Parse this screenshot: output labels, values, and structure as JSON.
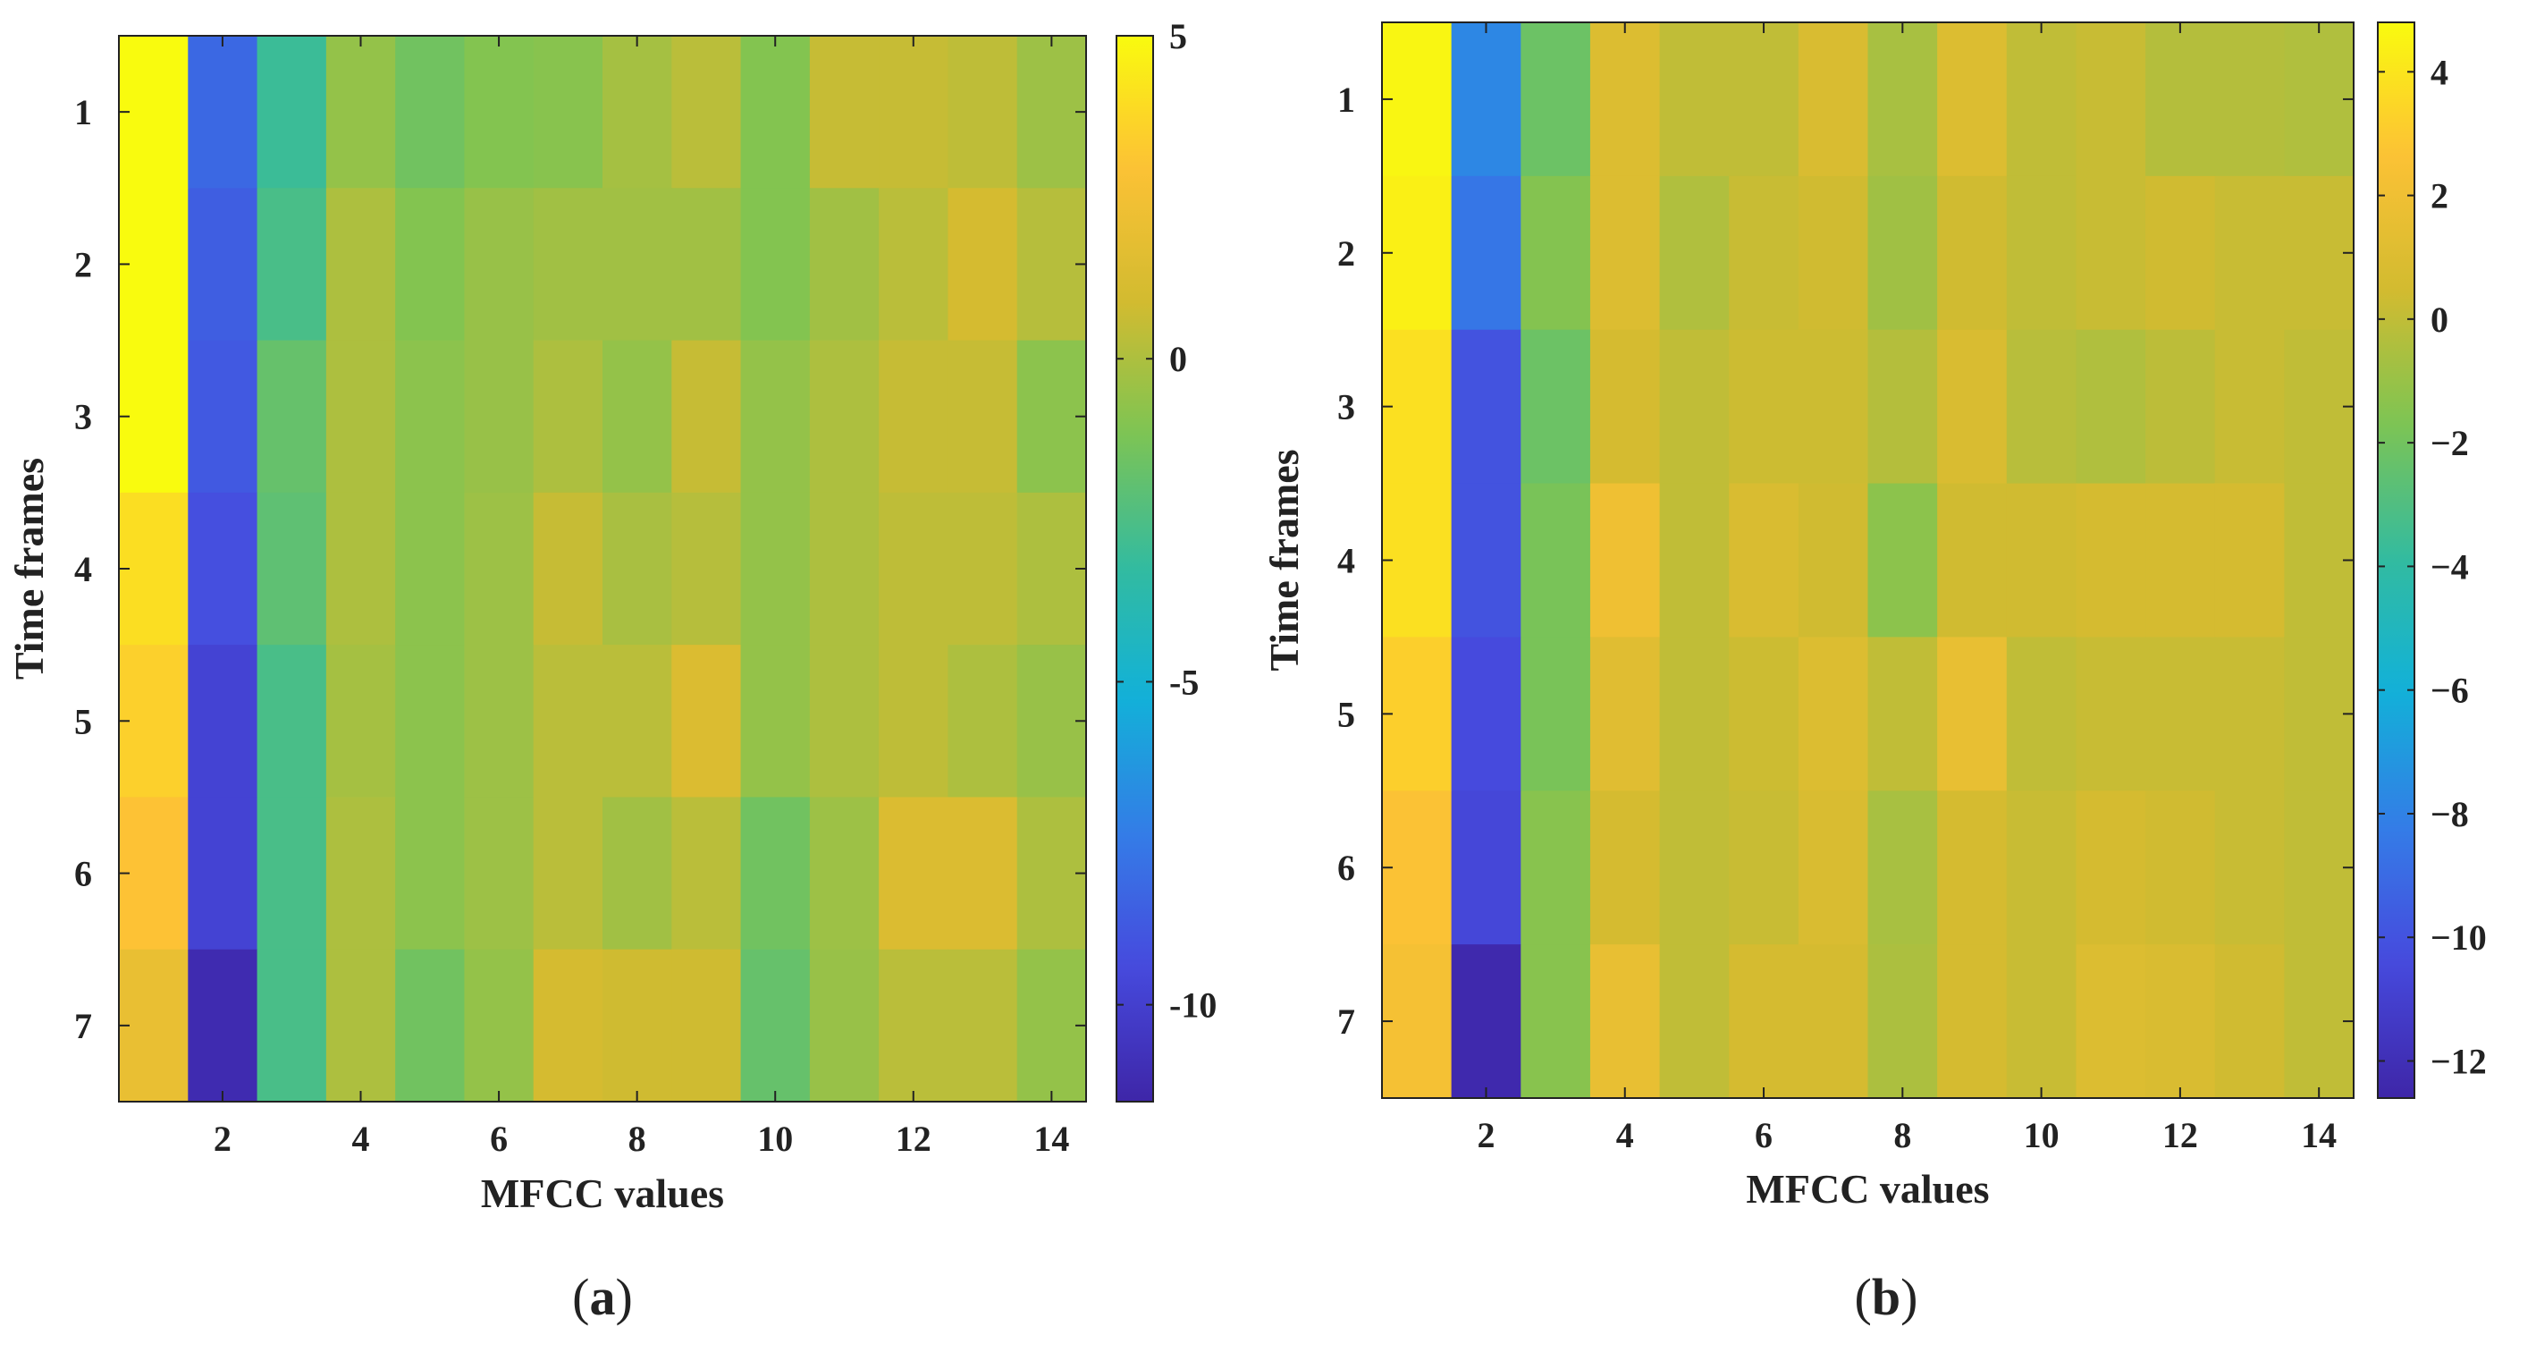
{
  "chart_data": [
    {
      "id": "a",
      "type": "heatmap",
      "title": "",
      "xlabel": "MFCC values",
      "ylabel": "Time frames",
      "caption": "a",
      "x_range": [
        1,
        14
      ],
      "y_range": [
        1,
        7
      ],
      "xticks": [
        2,
        4,
        6,
        8,
        10,
        12,
        14
      ],
      "yticks": [
        1,
        2,
        3,
        4,
        5,
        6,
        7
      ],
      "colorbar": {
        "min": -11.5,
        "max": 5,
        "ticks": [
          5,
          0,
          -5,
          -10
        ],
        "tick_labels": [
          "5",
          "0",
          "-5",
          "-10"
        ]
      },
      "rows": [
        "1",
        "2",
        "3",
        "4",
        "5",
        "6",
        "7"
      ],
      "values": [
        [
          5.0,
          -8.2,
          -3.0,
          -0.6,
          -1.5,
          -1.0,
          -0.9,
          -0.2,
          0.3,
          -1.0,
          0.6,
          0.6,
          0.4,
          -0.4
        ],
        [
          5.0,
          -8.6,
          -2.6,
          0.0,
          -1.0,
          -0.5,
          -0.3,
          -0.3,
          -0.3,
          -1.0,
          -0.3,
          0.3,
          1.0,
          0.2
        ],
        [
          5.0,
          -8.8,
          -1.8,
          0.0,
          -0.8,
          -0.5,
          0.0,
          -0.6,
          0.6,
          -0.6,
          0.0,
          0.6,
          0.6,
          -0.8
        ],
        [
          4.0,
          -9.2,
          -2.0,
          0.0,
          -0.8,
          -0.4,
          0.6,
          -0.1,
          0.2,
          -0.6,
          0.0,
          0.4,
          0.4,
          0.0
        ],
        [
          3.5,
          -9.8,
          -2.6,
          -0.2,
          -0.8,
          -0.4,
          0.3,
          0.3,
          1.3,
          -0.6,
          0.0,
          0.4,
          0.0,
          -0.5
        ],
        [
          3.0,
          -9.8,
          -2.6,
          0.0,
          -0.8,
          -0.4,
          0.3,
          -0.3,
          0.3,
          -1.5,
          -0.4,
          1.3,
          1.3,
          0.0
        ],
        [
          2.0,
          -11.2,
          -2.6,
          0.0,
          -1.5,
          -0.6,
          1.0,
          0.8,
          0.8,
          -1.8,
          -0.5,
          0.3,
          0.3,
          -0.6
        ]
      ]
    },
    {
      "id": "b",
      "type": "heatmap",
      "title": "",
      "xlabel": "MFCC values",
      "ylabel": "Time frames",
      "caption": "b",
      "x_range": [
        1,
        14
      ],
      "y_range": [
        1,
        7
      ],
      "xticks": [
        2,
        4,
        6,
        8,
        10,
        12,
        14
      ],
      "yticks": [
        1,
        2,
        3,
        4,
        5,
        6,
        7
      ],
      "colorbar": {
        "min": -12.6,
        "max": 4.8,
        "ticks": [
          4,
          2,
          0,
          -2,
          -4,
          -6,
          -8,
          -10,
          -12
        ],
        "tick_labels": [
          "4",
          "2",
          "0",
          "−2",
          "−4",
          "−6",
          "−8",
          "−10",
          "−12"
        ]
      },
      "rows": [
        "1",
        "2",
        "3",
        "4",
        "5",
        "6",
        "7"
      ],
      "values": [
        [
          4.6,
          -7.8,
          -2.2,
          1.0,
          0.0,
          0.0,
          0.8,
          -0.6,
          1.0,
          0.0,
          0.2,
          -0.3,
          -0.3,
          -0.4
        ],
        [
          4.4,
          -8.5,
          -1.5,
          1.0,
          -0.4,
          0.2,
          0.4,
          -0.8,
          0.4,
          0.0,
          0.2,
          0.4,
          0.2,
          0.2
        ],
        [
          3.8,
          -10.0,
          -2.2,
          0.6,
          0.0,
          0.3,
          0.3,
          -0.3,
          0.8,
          -0.2,
          -0.4,
          -0.1,
          0.2,
          0.0
        ],
        [
          3.8,
          -10.0,
          -1.8,
          2.0,
          0.0,
          0.8,
          0.4,
          -1.3,
          0.4,
          0.4,
          0.6,
          0.6,
          0.6,
          0.0
        ],
        [
          3.2,
          -10.4,
          -1.8,
          1.2,
          0.0,
          0.3,
          1.0,
          0.0,
          1.6,
          0.0,
          0.2,
          0.2,
          0.2,
          0.0
        ],
        [
          2.6,
          -10.6,
          -1.4,
          0.6,
          0.0,
          0.2,
          0.8,
          -0.6,
          0.6,
          0.2,
          0.6,
          0.4,
          0.2,
          0.0
        ],
        [
          2.3,
          -12.4,
          -1.4,
          1.6,
          0.0,
          0.6,
          0.6,
          -0.5,
          0.6,
          0.2,
          1.0,
          0.8,
          0.4,
          0.0
        ]
      ]
    }
  ]
}
